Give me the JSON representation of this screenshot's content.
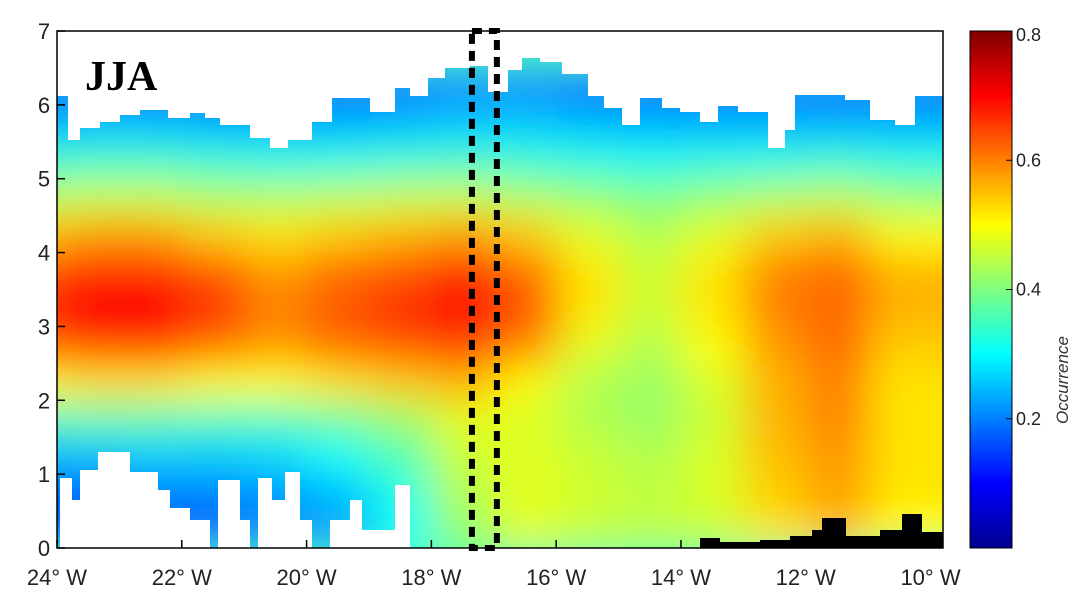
{
  "chart_data": {
    "type": "heatmap",
    "panel_label": "JJA",
    "colorbar_label": "Occurrence",
    "x_ticks": [
      {
        "value": -24,
        "label": "24° W"
      },
      {
        "value": -22,
        "label": "22° W"
      },
      {
        "value": -20,
        "label": "20° W"
      },
      {
        "value": -18,
        "label": "18° W"
      },
      {
        "value": -16,
        "label": "16° W"
      },
      {
        "value": -14,
        "label": "14° W"
      },
      {
        "value": -12,
        "label": "12° W"
      },
      {
        "value": -10,
        "label": "10° W"
      }
    ],
    "y_ticks": [
      {
        "value": 0,
        "label": "0"
      },
      {
        "value": 1,
        "label": "1"
      },
      {
        "value": 2,
        "label": "2"
      },
      {
        "value": 3,
        "label": "3"
      },
      {
        "value": 4,
        "label": "4"
      },
      {
        "value": 5,
        "label": "5"
      },
      {
        "value": 6,
        "label": "6"
      },
      {
        "value": 7,
        "label": "7"
      }
    ],
    "colorbar_ticks": [
      {
        "value": 0.2,
        "label": "0.2"
      },
      {
        "value": 0.4,
        "label": "0.4"
      },
      {
        "value": 0.6,
        "label": "0.6"
      },
      {
        "value": 0.8,
        "label": "0.8"
      }
    ],
    "xlim": [
      -24,
      -9.8
    ],
    "ylim": [
      0,
      7
    ],
    "clim": [
      0,
      0.8
    ],
    "colormap": "jet",
    "highlight_box": {
      "x_range": [
        -17.35,
        -16.95
      ],
      "y_range": [
        0,
        7
      ]
    },
    "x": [
      -24,
      -23,
      -22,
      -21,
      -20,
      -19,
      -18,
      -17,
      -16,
      -15,
      -14,
      -13,
      -12,
      -11,
      -10
    ],
    "y": [
      0.25,
      0.75,
      1.25,
      1.75,
      2.25,
      2.75,
      3.25,
      3.75,
      4.25,
      4.75,
      5.25,
      5.75,
      6.25
    ],
    "z": [
      [
        0.15,
        0.15,
        0.16,
        0.17,
        0.2,
        0.22,
        0.3,
        0.42,
        0.48,
        0.46,
        0.45,
        0.46,
        0.52,
        0.55,
        0.5
      ],
      [
        0.18,
        0.18,
        0.2,
        0.2,
        0.22,
        0.25,
        0.32,
        0.44,
        0.48,
        0.46,
        0.45,
        0.47,
        0.54,
        0.58,
        0.52
      ],
      [
        0.24,
        0.25,
        0.26,
        0.26,
        0.27,
        0.3,
        0.36,
        0.46,
        0.48,
        0.46,
        0.44,
        0.47,
        0.55,
        0.58,
        0.52
      ],
      [
        0.35,
        0.36,
        0.36,
        0.35,
        0.35,
        0.38,
        0.42,
        0.48,
        0.47,
        0.44,
        0.42,
        0.46,
        0.56,
        0.6,
        0.52
      ],
      [
        0.5,
        0.52,
        0.52,
        0.5,
        0.5,
        0.52,
        0.54,
        0.56,
        0.5,
        0.44,
        0.42,
        0.47,
        0.56,
        0.6,
        0.52
      ],
      [
        0.62,
        0.66,
        0.67,
        0.62,
        0.58,
        0.62,
        0.64,
        0.66,
        0.6,
        0.48,
        0.44,
        0.5,
        0.58,
        0.62,
        0.54
      ],
      [
        0.66,
        0.7,
        0.7,
        0.66,
        0.6,
        0.63,
        0.66,
        0.7,
        0.64,
        0.52,
        0.46,
        0.52,
        0.6,
        0.62,
        0.56
      ],
      [
        0.64,
        0.68,
        0.68,
        0.64,
        0.58,
        0.62,
        0.64,
        0.68,
        0.62,
        0.52,
        0.46,
        0.52,
        0.6,
        0.62,
        0.56
      ],
      [
        0.54,
        0.58,
        0.58,
        0.54,
        0.52,
        0.54,
        0.56,
        0.58,
        0.54,
        0.48,
        0.44,
        0.48,
        0.54,
        0.56,
        0.5
      ],
      [
        0.44,
        0.46,
        0.46,
        0.44,
        0.44,
        0.45,
        0.46,
        0.46,
        0.44,
        0.42,
        0.4,
        0.42,
        0.44,
        0.45,
        0.42
      ],
      [
        0.33,
        0.34,
        0.34,
        0.33,
        0.32,
        0.32,
        0.33,
        0.34,
        0.33,
        0.32,
        0.31,
        0.32,
        0.32,
        0.33,
        0.32
      ],
      [
        0.24,
        0.25,
        0.25,
        0.24,
        0.24,
        0.24,
        0.25,
        0.26,
        0.26,
        0.25,
        0.24,
        0.24,
        0.24,
        0.24,
        0.24
      ],
      [
        0.18,
        0.18,
        0.18,
        0.18,
        0.18,
        0.18,
        0.18,
        0.2,
        0.2,
        0.18,
        0.18,
        0.18,
        0.18,
        0.18,
        0.18
      ]
    ]
  }
}
